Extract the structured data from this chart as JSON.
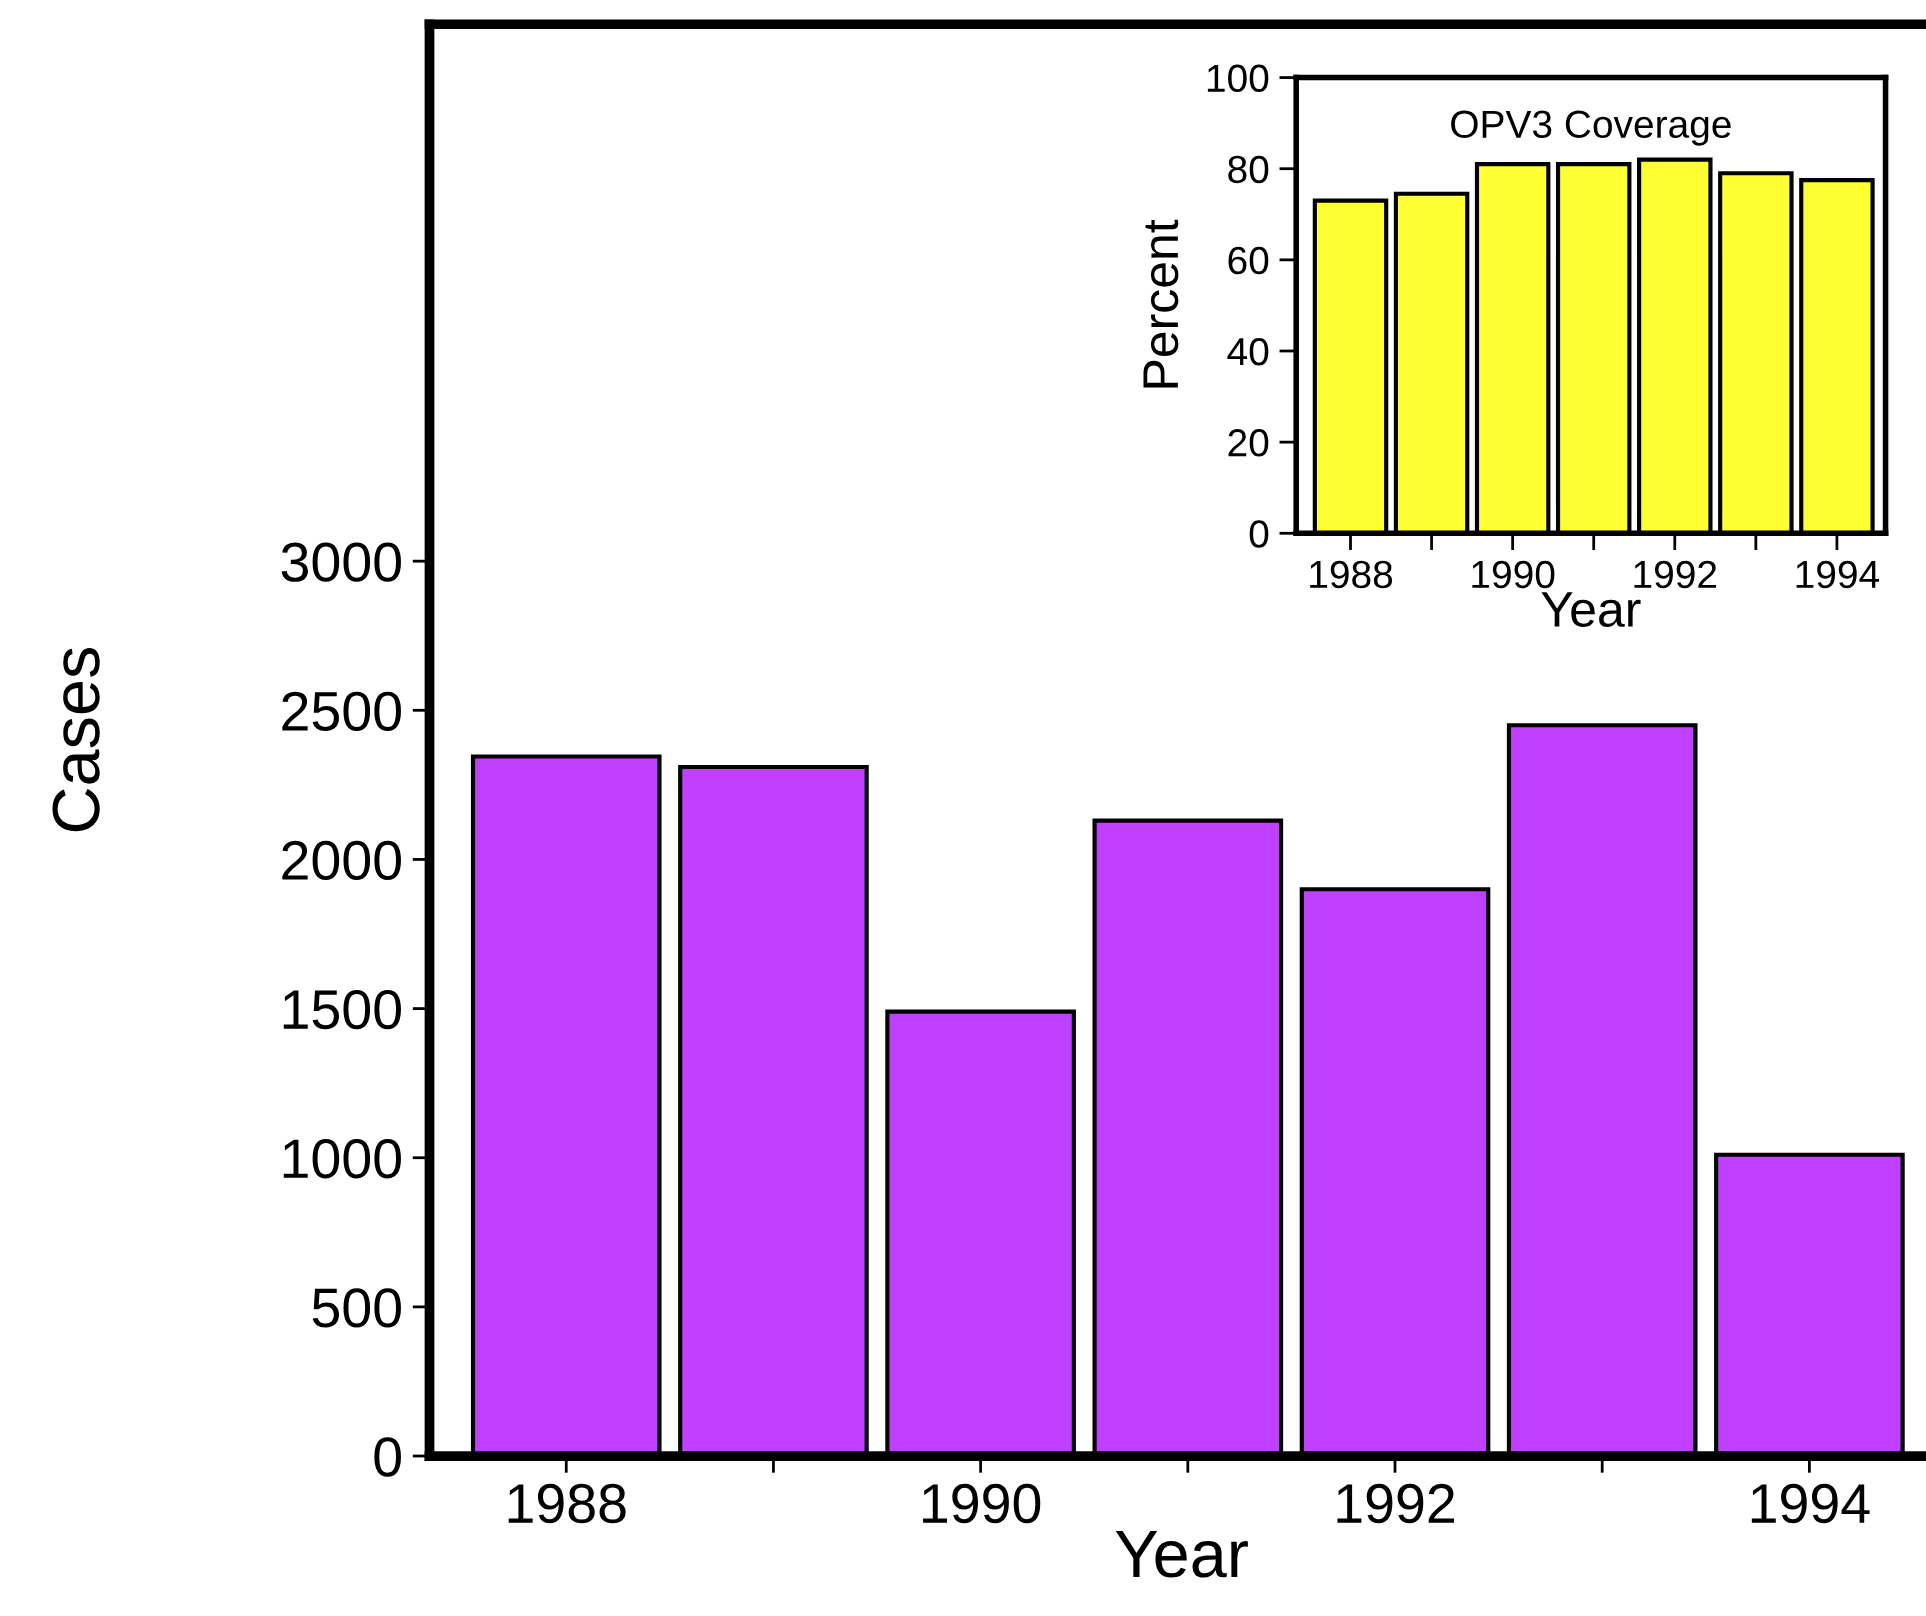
{
  "chart_data": [
    {
      "type": "bar",
      "xlabel": "Year",
      "ylabel": "Cases",
      "categories": [
        "1988",
        null,
        "1990",
        null,
        "1992",
        null,
        "1994"
      ],
      "values": [
        2345,
        2310,
        1490,
        2130,
        1900,
        2450,
        1010
      ],
      "color": "#bf40ff",
      "ylim": [
        0,
        4800
      ],
      "yticks": [
        0,
        500,
        1000,
        1500,
        2000,
        2500,
        3000
      ],
      "grid": false,
      "legend": false
    },
    {
      "type": "bar",
      "title": "OPV3 Coverage",
      "xlabel": "Year",
      "ylabel": "Percent",
      "categories": [
        "1988",
        null,
        "1990",
        null,
        "1992",
        null,
        "1994"
      ],
      "values": [
        73,
        74.5,
        81,
        81,
        82,
        79,
        77.5
      ],
      "color": "#ffff33",
      "ylim": [
        0,
        100
      ],
      "yticks": [
        0,
        20,
        40,
        60,
        80,
        100
      ],
      "grid": false,
      "legend": false
    }
  ]
}
